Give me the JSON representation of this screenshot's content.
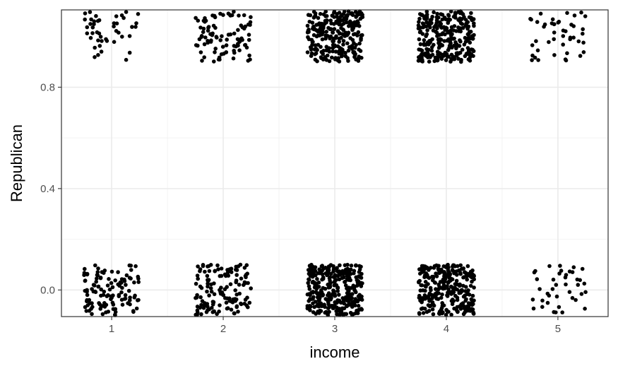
{
  "chart_data": {
    "type": "scatter",
    "title": "",
    "xlabel": "income",
    "ylabel": "Republican",
    "x_ticks": [
      "1",
      "2",
      "3",
      "4",
      "5"
    ],
    "y_ticks": [
      "0.0",
      "0.4",
      "0.8"
    ],
    "xlim": [
      0.55,
      5.45
    ],
    "ylim": [
      -0.105,
      1.105
    ],
    "grid": true,
    "theme": "bw",
    "point_color": "#000000",
    "jitter": {
      "x": 0.25,
      "y": 0.1
    },
    "groups": [
      {
        "income": 1,
        "republican": 0,
        "n": 120
      },
      {
        "income": 1,
        "republican": 1,
        "n": 45
      },
      {
        "income": 2,
        "republican": 0,
        "n": 140
      },
      {
        "income": 2,
        "republican": 1,
        "n": 95
      },
      {
        "income": 3,
        "republican": 0,
        "n": 330
      },
      {
        "income": 3,
        "republican": 1,
        "n": 260
      },
      {
        "income": 4,
        "republican": 0,
        "n": 290
      },
      {
        "income": 4,
        "republican": 1,
        "n": 290
      },
      {
        "income": 5,
        "republican": 0,
        "n": 40
      },
      {
        "income": 5,
        "republican": 1,
        "n": 45
      }
    ]
  }
}
